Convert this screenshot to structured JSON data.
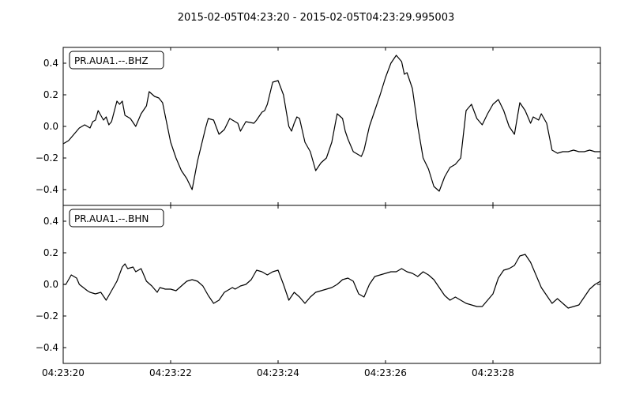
{
  "chart_data": {
    "type": "line",
    "title": "2015-02-05T04:23:20  -  2015-02-05T04:23:29.995003",
    "x_unit": "seconds after 04:23:20",
    "xlim": [
      0,
      10
    ],
    "x_ticks": [
      0,
      2,
      4,
      6,
      8
    ],
    "x_tick_labels": [
      "04:23:20",
      "04:23:22",
      "04:23:24",
      "04:23:26",
      "04:23:28"
    ],
    "panels": [
      {
        "name": "PR.AUA1.--.BHZ",
        "ylim": [
          -0.5,
          0.5
        ],
        "y_ticks": [
          0.4,
          0.2,
          0.0,
          -0.2,
          -0.4
        ],
        "y_tick_labels": [
          "0.4",
          "0.2",
          "0.0",
          "−0.2",
          "−0.4"
        ],
        "x": [
          0.0,
          0.1,
          0.2,
          0.3,
          0.4,
          0.5,
          0.55,
          0.6,
          0.65,
          0.75,
          0.8,
          0.85,
          0.9,
          1.0,
          1.05,
          1.1,
          1.15,
          1.25,
          1.35,
          1.45,
          1.55,
          1.6,
          1.7,
          1.78,
          1.85,
          2.0,
          2.1,
          2.2,
          2.3,
          2.4,
          2.5,
          2.6,
          2.65,
          2.7,
          2.8,
          2.9,
          3.0,
          3.1,
          3.25,
          3.3,
          3.4,
          3.55,
          3.6,
          3.7,
          3.75,
          3.8,
          3.9,
          4.0,
          4.1,
          4.2,
          4.25,
          4.3,
          4.35,
          4.4,
          4.5,
          4.6,
          4.7,
          4.8,
          4.9,
          5.0,
          5.1,
          5.2,
          5.25,
          5.3,
          5.4,
          5.5,
          5.55,
          5.6,
          5.7,
          5.8,
          5.9,
          6.0,
          6.1,
          6.2,
          6.3,
          6.35,
          6.4,
          6.5,
          6.6,
          6.7,
          6.8,
          6.9,
          7.0,
          7.1,
          7.2,
          7.3,
          7.4,
          7.45,
          7.5,
          7.6,
          7.7,
          7.8,
          7.9,
          8.0,
          8.1,
          8.2,
          8.3,
          8.4,
          8.5,
          8.6,
          8.7,
          8.75,
          8.85,
          8.9,
          9.0,
          9.1,
          9.2,
          9.3,
          9.4,
          9.5,
          9.6,
          9.7,
          9.8,
          9.9,
          10.0
        ],
        "y": [
          -0.11,
          -0.09,
          -0.05,
          -0.01,
          0.01,
          -0.01,
          0.03,
          0.04,
          0.1,
          0.04,
          0.06,
          0.01,
          0.03,
          0.16,
          0.14,
          0.16,
          0.07,
          0.05,
          0.0,
          0.08,
          0.13,
          0.22,
          0.19,
          0.18,
          0.15,
          -0.1,
          -0.2,
          -0.28,
          -0.33,
          -0.4,
          -0.22,
          -0.08,
          -0.01,
          0.05,
          0.04,
          -0.05,
          -0.02,
          0.05,
          0.02,
          -0.03,
          0.03,
          0.02,
          0.04,
          0.09,
          0.1,
          0.14,
          0.28,
          0.29,
          0.2,
          0.0,
          -0.03,
          0.02,
          0.06,
          0.05,
          -0.1,
          -0.16,
          -0.28,
          -0.23,
          -0.2,
          -0.1,
          0.08,
          0.05,
          -0.03,
          -0.08,
          -0.16,
          -0.18,
          -0.19,
          -0.15,
          0.0,
          0.1,
          0.2,
          0.31,
          0.4,
          0.45,
          0.41,
          0.33,
          0.34,
          0.24,
          0.0,
          -0.2,
          -0.27,
          -0.38,
          -0.41,
          -0.32,
          -0.26,
          -0.24,
          -0.2,
          -0.05,
          0.1,
          0.14,
          0.05,
          0.01,
          0.08,
          0.14,
          0.17,
          0.1,
          0.0,
          -0.05,
          0.15,
          0.1,
          0.02,
          0.06,
          0.04,
          0.08,
          0.02,
          -0.15,
          -0.17,
          -0.16,
          -0.16,
          -0.15,
          -0.16,
          -0.16,
          -0.15,
          -0.16,
          -0.16
        ]
      },
      {
        "name": "PR.AUA1.--.BHN",
        "ylim": [
          -0.5,
          0.5
        ],
        "y_ticks": [
          0.4,
          0.2,
          0.0,
          -0.2,
          -0.4
        ],
        "y_tick_labels": [
          "0.4",
          "0.2",
          "0.0",
          "−0.2",
          "−0.4"
        ],
        "x": [
          0.0,
          0.05,
          0.15,
          0.25,
          0.3,
          0.45,
          0.5,
          0.6,
          0.7,
          0.8,
          0.9,
          1.0,
          1.1,
          1.15,
          1.2,
          1.3,
          1.35,
          1.45,
          1.55,
          1.65,
          1.75,
          1.8,
          1.9,
          2.0,
          2.1,
          2.2,
          2.3,
          2.4,
          2.5,
          2.6,
          2.7,
          2.8,
          2.9,
          3.0,
          3.1,
          3.15,
          3.2,
          3.3,
          3.4,
          3.5,
          3.6,
          3.7,
          3.8,
          3.9,
          4.0,
          4.1,
          4.2,
          4.3,
          4.4,
          4.5,
          4.6,
          4.7,
          4.8,
          4.9,
          5.0,
          5.1,
          5.2,
          5.3,
          5.4,
          5.5,
          5.6,
          5.7,
          5.8,
          5.9,
          6.0,
          6.1,
          6.2,
          6.3,
          6.4,
          6.5,
          6.6,
          6.7,
          6.8,
          6.9,
          7.0,
          7.1,
          7.2,
          7.3,
          7.4,
          7.5,
          7.6,
          7.7,
          7.8,
          7.9,
          8.0,
          8.1,
          8.2,
          8.3,
          8.4,
          8.5,
          8.6,
          8.7,
          8.8,
          8.9,
          9.0,
          9.1,
          9.2,
          9.3,
          9.4,
          9.5,
          9.6,
          9.7,
          9.8,
          9.9,
          10.0
        ],
        "y": [
          0.0,
          0.0,
          0.06,
          0.04,
          0.0,
          -0.04,
          -0.05,
          -0.06,
          -0.05,
          -0.1,
          -0.04,
          0.02,
          0.11,
          0.13,
          0.1,
          0.11,
          0.08,
          0.1,
          0.02,
          -0.01,
          -0.05,
          -0.02,
          -0.03,
          -0.03,
          -0.04,
          -0.01,
          0.02,
          0.03,
          0.02,
          -0.01,
          -0.07,
          -0.12,
          -0.1,
          -0.05,
          -0.03,
          -0.02,
          -0.03,
          -0.01,
          0.0,
          0.03,
          0.09,
          0.08,
          0.06,
          0.08,
          0.09,
          0.0,
          -0.1,
          -0.05,
          -0.08,
          -0.12,
          -0.08,
          -0.05,
          -0.04,
          -0.03,
          -0.02,
          0.0,
          0.03,
          0.04,
          0.02,
          -0.06,
          -0.08,
          0.0,
          0.05,
          0.06,
          0.07,
          0.08,
          0.08,
          0.1,
          0.08,
          0.07,
          0.05,
          0.08,
          0.06,
          0.03,
          -0.02,
          -0.07,
          -0.1,
          -0.08,
          -0.1,
          -0.12,
          -0.13,
          -0.14,
          -0.14,
          -0.1,
          -0.06,
          0.04,
          0.09,
          0.1,
          0.12,
          0.18,
          0.19,
          0.14,
          0.06,
          -0.02,
          -0.07,
          -0.12,
          -0.09,
          -0.12,
          -0.15,
          -0.14,
          -0.13,
          -0.08,
          -0.03,
          0.0,
          0.02
        ]
      }
    ]
  }
}
